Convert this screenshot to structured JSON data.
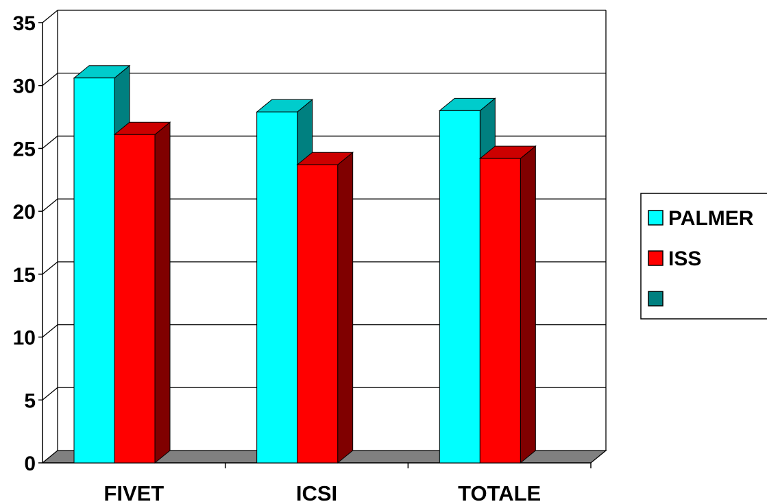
{
  "chart_data": {
    "type": "bar",
    "categories": [
      "FIVET",
      "ICSI",
      "TOTALE"
    ],
    "series": [
      {
        "name": "PALMER",
        "values": [
          30.6,
          27.9,
          28.0
        ],
        "color": "#00FFFF",
        "side_color": "#008080",
        "top_color": "#00CCCC"
      },
      {
        "name": "ISS",
        "values": [
          26.1,
          23.7,
          24.2
        ],
        "color": "#FF0000",
        "side_color": "#800000",
        "top_color": "#CC0000"
      }
    ],
    "legend": {
      "position": "right",
      "entries": [
        {
          "label": "PALMER",
          "color": "#00FFFF"
        },
        {
          "label": "ISS",
          "color": "#FF0000"
        },
        {
          "label": "",
          "color": "#008080"
        }
      ]
    },
    "ylim": [
      0,
      35
    ],
    "yticks": [
      "0",
      "5",
      "10",
      "15",
      "20",
      "25",
      "30",
      "35"
    ],
    "grid": true,
    "title": "",
    "xlabel": "",
    "ylabel": "",
    "floor_color": "#808080"
  }
}
